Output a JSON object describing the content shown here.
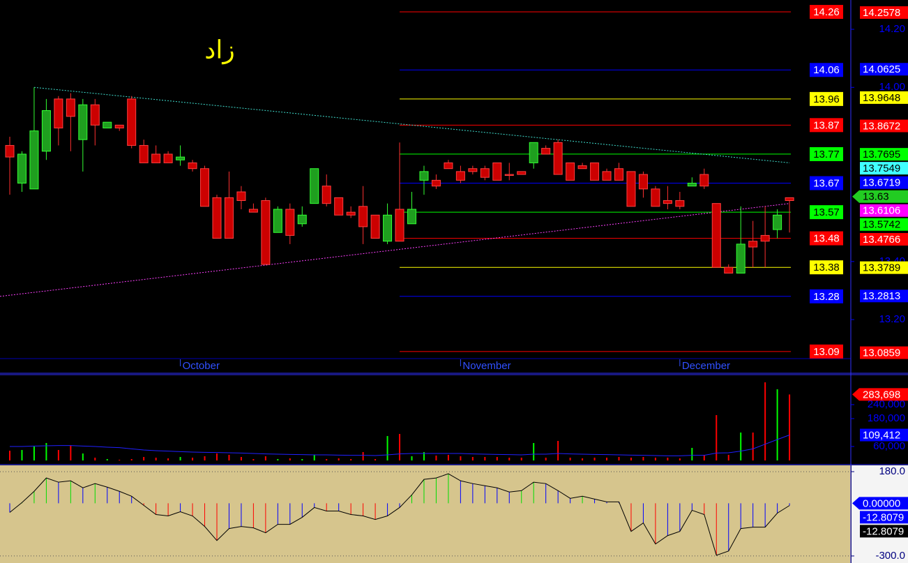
{
  "chart_data": [
    {
      "type": "candlestick",
      "title": "زاد",
      "categories": [
        null,
        null,
        null,
        null,
        null,
        null,
        null,
        null,
        null,
        null,
        null,
        null,
        null,
        null,
        "October",
        null,
        null,
        null,
        null,
        null,
        null,
        null,
        null,
        null,
        null,
        null,
        null,
        null,
        null,
        null,
        null,
        null,
        null,
        null,
        null,
        null,
        null,
        "November",
        null,
        null,
        null,
        null,
        null,
        null,
        null,
        null,
        null,
        null,
        null,
        null,
        null,
        null,
        null,
        null,
        null,
        "December",
        null,
        null,
        null,
        null,
        null,
        null,
        null,
        null,
        null
      ],
      "open": [
        13.8,
        13.67,
        13.65,
        13.78,
        13.96,
        13.96,
        13.82,
        13.94,
        13.86,
        13.87,
        13.96,
        13.8,
        13.77,
        13.77,
        13.75,
        13.74,
        13.72,
        13.62,
        13.62,
        13.64,
        13.58,
        13.61,
        13.5,
        13.58,
        13.53,
        13.6,
        13.66,
        13.62,
        13.57,
        13.59,
        13.56,
        13.47,
        13.58,
        13.53,
        13.68,
        13.68,
        13.74,
        13.71,
        13.72,
        13.72,
        13.74,
        13.7,
        13.71,
        13.74,
        13.79,
        13.81,
        13.74,
        13.73,
        13.74,
        13.71,
        13.72,
        13.71,
        13.7,
        13.65,
        13.61,
        13.61,
        13.66,
        13.7,
        13.6,
        13.38,
        13.36,
        13.47,
        13.49,
        13.51,
        13.62
      ],
      "high": [
        13.83,
        13.78,
        14.0,
        13.96,
        13.97,
        13.98,
        13.96,
        13.96,
        13.88,
        13.87,
        13.97,
        13.82,
        13.8,
        13.78,
        13.8,
        13.75,
        13.73,
        13.63,
        13.71,
        13.66,
        13.6,
        13.62,
        13.59,
        13.6,
        13.59,
        13.72,
        13.7,
        13.62,
        13.59,
        13.66,
        13.56,
        13.6,
        13.81,
        13.64,
        13.73,
        13.7,
        13.75,
        13.73,
        13.73,
        13.73,
        13.74,
        13.74,
        13.71,
        13.81,
        13.8,
        13.82,
        13.74,
        13.74,
        13.74,
        13.72,
        13.74,
        13.71,
        13.71,
        13.66,
        13.66,
        13.64,
        13.69,
        13.72,
        13.6,
        13.39,
        13.59,
        13.54,
        13.59,
        13.58,
        13.62
      ],
      "low": [
        13.63,
        13.64,
        13.65,
        13.75,
        13.8,
        13.78,
        13.71,
        13.8,
        13.86,
        13.85,
        13.79,
        13.74,
        13.74,
        13.74,
        13.73,
        13.71,
        13.59,
        13.48,
        13.48,
        13.58,
        13.57,
        13.39,
        13.5,
        13.46,
        13.52,
        13.6,
        13.59,
        13.56,
        13.55,
        13.46,
        13.48,
        13.46,
        13.47,
        13.53,
        13.63,
        13.65,
        13.72,
        13.67,
        13.7,
        13.68,
        13.68,
        13.68,
        13.7,
        13.72,
        13.77,
        13.7,
        13.68,
        13.72,
        13.68,
        13.68,
        13.68,
        13.59,
        13.62,
        13.59,
        13.58,
        13.58,
        13.66,
        13.65,
        13.38,
        13.36,
        13.36,
        13.38,
        13.38,
        13.48,
        13.5
      ],
      "close": [
        13.76,
        13.77,
        13.85,
        13.92,
        13.86,
        13.9,
        13.94,
        13.87,
        13.88,
        13.86,
        13.8,
        13.74,
        13.74,
        13.74,
        13.76,
        13.72,
        13.59,
        13.48,
        13.48,
        13.61,
        13.57,
        13.39,
        13.58,
        13.49,
        13.56,
        13.72,
        13.6,
        13.56,
        13.56,
        13.52,
        13.48,
        13.56,
        13.47,
        13.58,
        13.71,
        13.66,
        13.72,
        13.68,
        13.71,
        13.69,
        13.68,
        13.7,
        13.7,
        13.81,
        13.77,
        13.7,
        13.68,
        13.72,
        13.68,
        13.68,
        13.68,
        13.59,
        13.65,
        13.59,
        13.6,
        13.59,
        13.67,
        13.66,
        13.38,
        13.36,
        13.46,
        13.45,
        13.47,
        13.56,
        13.61
      ],
      "up_color": "#1f9f1f",
      "down_color": "#cc0000",
      "ylim": [
        13.068,
        14.301
      ],
      "yticks": [
        {
          "value": 14.2,
          "label": "14.20"
        },
        {
          "value": 14.0,
          "label": "14.00"
        },
        {
          "value": 13.4,
          "label": "13.40"
        },
        {
          "value": 13.2,
          "label": "13.20"
        }
      ],
      "levels": [
        {
          "value": 14.26,
          "color": "#ff0000"
        },
        {
          "value": 14.06,
          "color": "#0000ff"
        },
        {
          "value": 13.96,
          "color": "#ffff00"
        },
        {
          "value": 13.87,
          "color": "#ff0000"
        },
        {
          "value": 13.77,
          "color": "#00ff00"
        },
        {
          "value": 13.67,
          "color": "#0000ff"
        },
        {
          "value": 13.57,
          "color": "#00ff00"
        },
        {
          "value": 13.48,
          "color": "#ff0000"
        },
        {
          "value": 13.38,
          "color": "#ffff00"
        },
        {
          "value": 13.28,
          "color": "#0000ff"
        },
        {
          "value": 13.09,
          "color": "#ff0000"
        }
      ],
      "markers": [
        {
          "value": 14.2578,
          "color": "#ff0000"
        },
        {
          "value": 14.0625,
          "color": "#0000ff"
        },
        {
          "value": 13.9648,
          "color": "#ffff00"
        },
        {
          "value": 13.8672,
          "color": "#ff0000"
        },
        {
          "value": 13.7695,
          "color": "#00ff00"
        },
        {
          "value": 13.7549,
          "color": "#40ffff"
        },
        {
          "value": 13.6719,
          "color": "#0000ff"
        },
        {
          "value": 13.63,
          "color": "#22cc22",
          "arrow": true
        },
        {
          "value": 13.6106,
          "color": "#ff00ff"
        },
        {
          "value": 13.5742,
          "color": "#00ff00"
        },
        {
          "value": 13.4766,
          "color": "#ff0000"
        },
        {
          "value": 13.3789,
          "color": "#ffff00"
        },
        {
          "value": 13.2813,
          "color": "#0000ff"
        },
        {
          "value": 13.0859,
          "color": "#ff0000"
        }
      ],
      "trendlines": [
        {
          "color": "#40e0d0",
          "x": [
            2,
            64
          ],
          "y": [
            14.0,
            13.74
          ]
        },
        {
          "color": "#ff40ff",
          "x": [
            -0.8,
            64
          ],
          "y": [
            13.28,
            13.6
          ]
        }
      ]
    },
    {
      "type": "volume",
      "values": [
        42000,
        45000,
        60000,
        75000,
        45000,
        63000,
        30000,
        12000,
        6000,
        3000,
        6000,
        15000,
        12000,
        9000,
        15000,
        12000,
        18000,
        30000,
        24000,
        15000,
        6000,
        18000,
        6000,
        9000,
        6000,
        24000,
        6000,
        9000,
        6000,
        36000,
        6000,
        105000,
        114000,
        18000,
        36000,
        21000,
        24000,
        18000,
        15000,
        15000,
        15000,
        12000,
        12000,
        75000,
        12000,
        84000,
        12000,
        9000,
        12000,
        12000,
        15000,
        12000,
        15000,
        12000,
        12000,
        9000,
        54000,
        24000,
        195000,
        24000,
        120000,
        120000,
        336000,
        306000,
        283698
      ],
      "ma": [
        60000,
        60000,
        62000,
        63000,
        64000,
        64000,
        62000,
        60000,
        57000,
        55000,
        50000,
        45000,
        42000,
        40000,
        38000,
        36000,
        35000,
        34000,
        33000,
        32000,
        30000,
        28000,
        27000,
        26000,
        25000,
        24000,
        24000,
        23000,
        22000,
        22000,
        21000,
        24000,
        28000,
        30000,
        30000,
        30000,
        30000,
        30000,
        28000,
        27000,
        26000,
        25000,
        24000,
        27000,
        27000,
        30000,
        28000,
        27000,
        26000,
        25000,
        24000,
        23000,
        22000,
        21000,
        20000,
        20000,
        22000,
        22000,
        32000,
        33000,
        40000,
        50000,
        70000,
        90000,
        109412
      ],
      "up_color": "#00ff00",
      "down_color": "#ff0000",
      "ma_color": "#2020ff",
      "ylim": [
        -15000,
        369000
      ],
      "yticks": [
        {
          "value": 240000,
          "label": "240,000"
        },
        {
          "value": 180000,
          "label": "180,000"
        },
        {
          "value": 60000,
          "label": "60,000"
        }
      ],
      "markers": [
        {
          "value": 283698,
          "label": "283,698",
          "color": "#ff0000",
          "arrow": true
        },
        {
          "value": 109412,
          "label": "109,412",
          "color": "#0000ff"
        }
      ]
    },
    {
      "type": "oscillator",
      "values": [
        -52,
        4,
        68,
        144,
        120,
        128,
        88,
        112,
        92,
        68,
        40,
        -12,
        -64,
        -72,
        -48,
        -72,
        -132,
        -212,
        -144,
        -132,
        -140,
        -168,
        -120,
        -120,
        -80,
        -24,
        -44,
        -44,
        -64,
        -72,
        -92,
        -72,
        -24,
        48,
        136,
        144,
        168,
        128,
        112,
        100,
        88,
        64,
        72,
        120,
        112,
        72,
        28,
        40,
        24,
        8,
        8,
        -160,
        -112,
        -232,
        -184,
        -160,
        -40,
        -64,
        -296,
        -272,
        -144,
        -136,
        -136,
        -56,
        -12.8079
      ],
      "ylim": [
        -340,
        216
      ],
      "yticks": [
        {
          "value": 180,
          "label": "180.0"
        },
        {
          "value": -300,
          "label": "-300.0"
        }
      ],
      "markers": [
        {
          "value": 0,
          "label": "0.00000",
          "color": "#0000ff",
          "arrow": true
        },
        {
          "value": -12.8079,
          "color": "#0000ff"
        },
        {
          "value": -12.8079,
          "color": "#000000"
        }
      ]
    }
  ]
}
